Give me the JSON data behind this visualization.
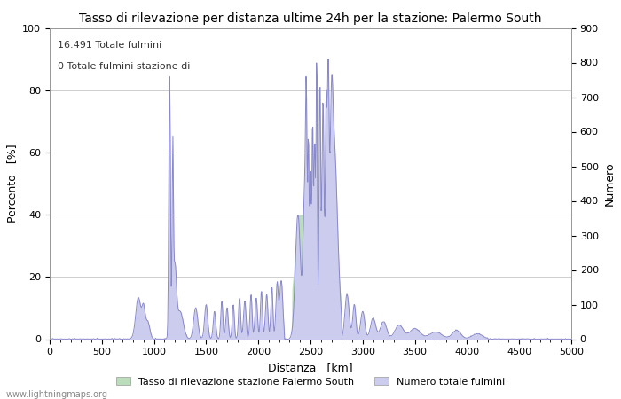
{
  "title": "Tasso di rilevazione per distanza ultime 24h per la stazione: Palermo South",
  "xlabel": "Distanza   [km]",
  "ylabel_left": "Percento   [%]",
  "ylabel_right": "Numero",
  "annotation_line1": "16.491 Totale fulmini",
  "annotation_line2": "0 Totale fulmini stazione di",
  "xlim": [
    0,
    5000
  ],
  "ylim_left": [
    0,
    100
  ],
  "ylim_right": [
    0,
    900
  ],
  "xticks": [
    0,
    500,
    1000,
    1500,
    2000,
    2500,
    3000,
    3500,
    4000,
    4500,
    5000
  ],
  "yticks_left": [
    0,
    20,
    40,
    60,
    80,
    100
  ],
  "yticks_right": [
    0,
    100,
    200,
    300,
    400,
    500,
    600,
    700,
    800,
    900
  ],
  "legend_label_green": "Tasso di rilevazione stazione Palermo South",
  "legend_label_blue": "Numero totale fulmini",
  "watermark": "www.lightningmaps.org",
  "line_color": "#8888cc",
  "fill_green_color": "#bbddbb",
  "fill_blue_color": "#ccccee",
  "background_color": "#ffffff",
  "grid_color": "#bbbbbb",
  "title_fontsize": 10,
  "label_fontsize": 9,
  "tick_fontsize": 8,
  "figwidth": 7.0,
  "figheight": 4.5,
  "dpi": 100
}
